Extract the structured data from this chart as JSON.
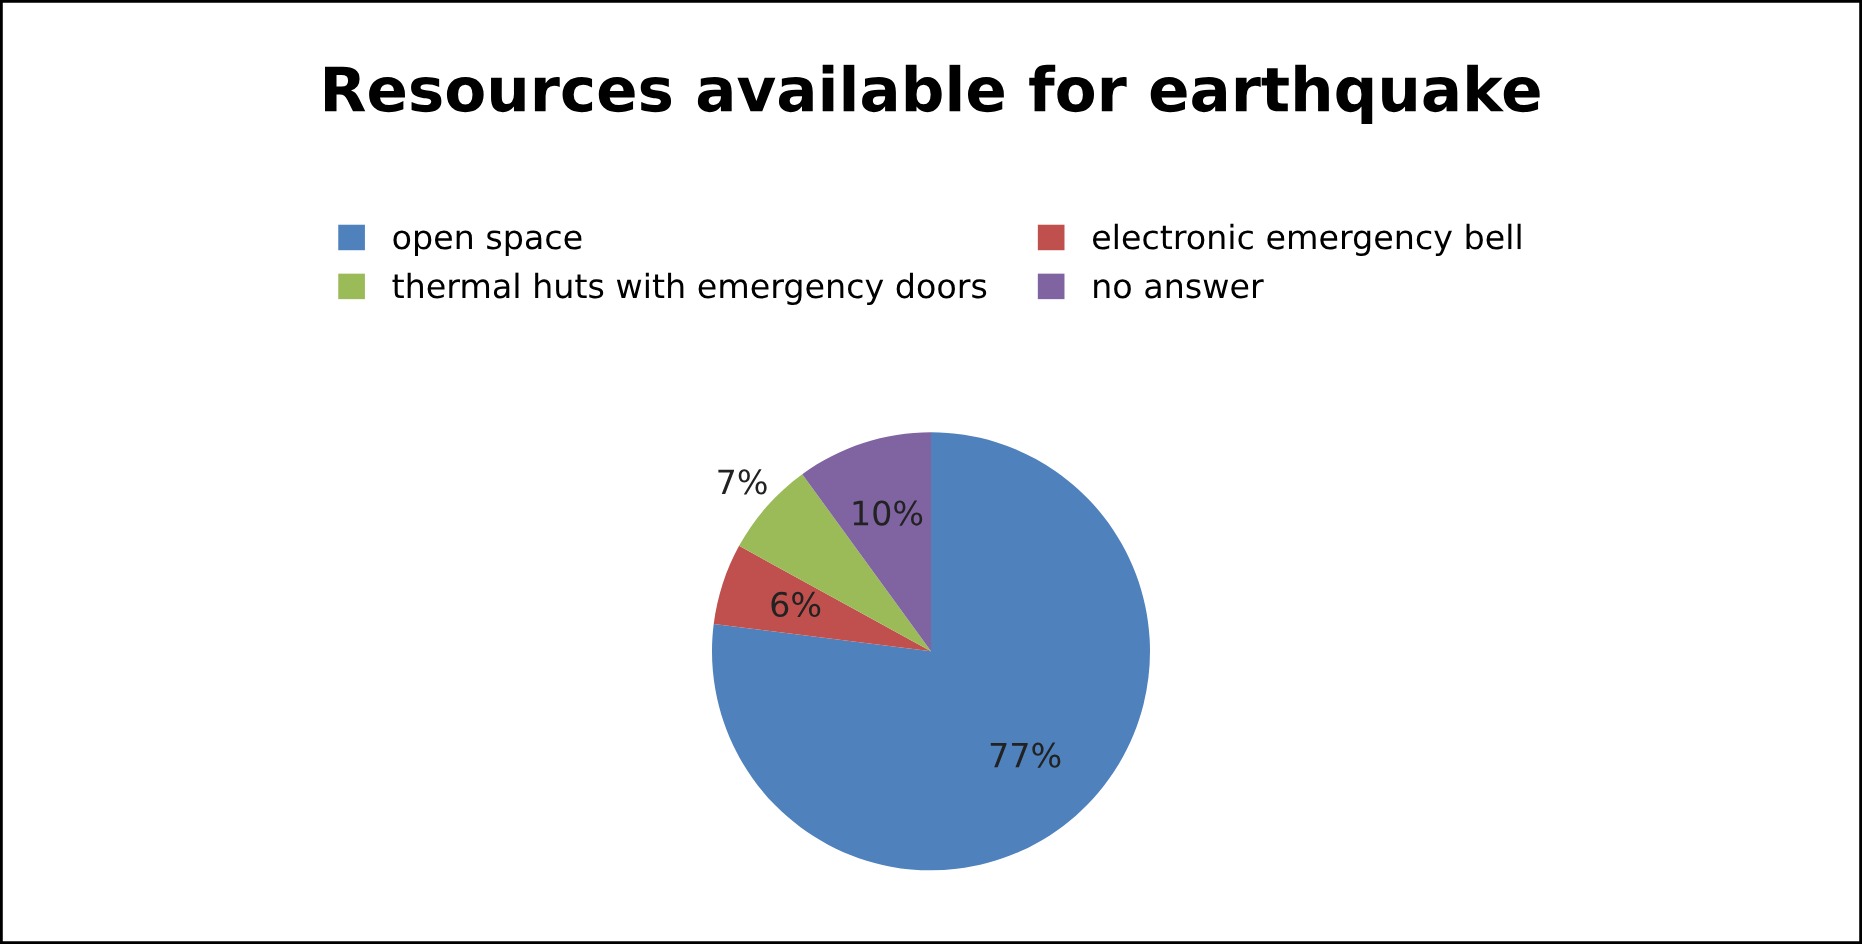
{
  "chart_data": {
    "type": "pie",
    "title": "Resources available for earthquake",
    "categories": [
      "open space",
      "electronic emergency bell",
      "thermal huts with emergency doors",
      "no answer"
    ],
    "values": [
      77,
      6,
      7,
      10
    ],
    "colors": [
      "#4f81bd",
      "#c0504d",
      "#9bbb59",
      "#8064a2"
    ],
    "value_labels": [
      "77%",
      "6%",
      "7%",
      "10%"
    ],
    "legend": "top"
  }
}
